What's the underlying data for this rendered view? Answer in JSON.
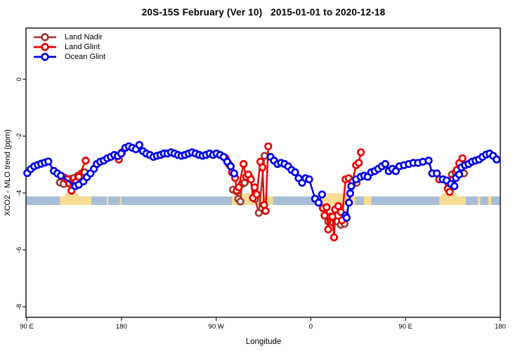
{
  "title": "20S-15S February (Ver 10)   2015-01-01 to 2020-12-18",
  "chart_data": {
    "type": "line",
    "title": "20S-15S February (Ver 10)   2015-01-01 to 2020-12-18",
    "xlabel": "Longitude",
    "ylabel": "XCO2 - MLO trend (ppm)",
    "x_range_deg": [
      -0.7,
      450
    ],
    "y_range": [
      -8.37,
      1.8
    ],
    "grid": false,
    "legend_position": "top-left",
    "x_ticks": [
      {
        "deg": 0,
        "label": "90 E"
      },
      {
        "deg": 90,
        "label": "180"
      },
      {
        "deg": 180,
        "label": "90 W"
      },
      {
        "deg": 270,
        "label": "0"
      },
      {
        "deg": 360,
        "label": "90 E"
      },
      {
        "deg": 450,
        "label": "180"
      }
    ],
    "y_ticks": [
      {
        "v": 0,
        "label": "0"
      },
      {
        "v": -2,
        "label": "-2"
      },
      {
        "v": -4,
        "label": "-4"
      },
      {
        "v": -6,
        "label": "-6"
      },
      {
        "v": -8,
        "label": "-8"
      }
    ],
    "band": {
      "name": "reference-band",
      "v_top": -4.12,
      "v_bottom": -4.42,
      "color": "#a9bdd8"
    },
    "patch_color": "#f8dc94",
    "patches": [
      {
        "d0": 31.5,
        "d1": 61.5,
        "b0": 36,
        "b1": 50
      },
      {
        "d0": 76,
        "d1": 77.5
      },
      {
        "d0": 88.5,
        "d1": 90
      },
      {
        "d0": 195,
        "d1": 234,
        "b0": 199,
        "b1": 216
      },
      {
        "d0": 278,
        "d1": 312,
        "b0": 279,
        "b1": 305
      },
      {
        "d0": 320.5,
        "d1": 327.5
      },
      {
        "d0": 392,
        "d1": 417,
        "b0": 394,
        "b1": 409
      },
      {
        "d0": 428.5,
        "d1": 431
      },
      {
        "d0": 438.5,
        "d1": 441.5
      }
    ],
    "series": [
      {
        "name": "Land Nadir",
        "color": "#a03b35",
        "segments": [
          [
            [
              31.5,
              -3.63
            ],
            [
              35,
              -3.68
            ],
            [
              38.5,
              -3.55
            ],
            [
              42,
              -3.5
            ],
            [
              45,
              -3.47
            ],
            [
              48.5,
              -3.39
            ],
            [
              52,
              -3.31
            ],
            [
              55,
              -3.27
            ]
          ],
          [
            [
              196,
              -3.88
            ],
            [
              199.5,
              -3.94
            ],
            [
              201,
              -4.21
            ],
            [
              203,
              -4.3
            ],
            [
              204.5,
              -3.68
            ],
            [
              207,
              -3.64
            ],
            [
              209.5,
              -3.43
            ],
            [
              211.5,
              -3.43
            ],
            [
              217,
              -4.21
            ],
            [
              220.5,
              -4.7
            ],
            [
              226,
              -2.69
            ]
          ],
          [
            [
              281.5,
              -4.54
            ],
            [
              286.5,
              -5.0
            ],
            [
              291,
              -5.04
            ],
            [
              295,
              -5.0
            ],
            [
              298.5,
              -5.12
            ],
            [
              302,
              -5.08
            ],
            [
              310.5,
              -3.6
            ],
            [
              313.5,
              -3.64
            ]
          ],
          [
            [
              400,
              -3.6
            ],
            [
              404,
              -3.35
            ],
            [
              407.5,
              -3.27
            ],
            [
              412,
              -3.27
            ],
            [
              415.5,
              -3.31
            ]
          ]
        ]
      },
      {
        "name": "Land Glint",
        "color": "#ee0000",
        "segments": [
          [
            [
              36,
              -3.46
            ],
            [
              38.5,
              -3.52
            ],
            [
              40.5,
              -3.67
            ],
            [
              42.5,
              -3.92
            ],
            [
              44.5,
              -3.72
            ],
            [
              47,
              -3.6
            ],
            [
              49.5,
              -3.43
            ],
            [
              56,
              -2.86
            ]
          ],
          [
            [
              87.5,
              -2.82
            ],
            [
              90.5,
              -2.57
            ]
          ],
          [
            [
              189,
              -2.78
            ],
            [
              192,
              -2.98
            ],
            [
              195,
              -3.27
            ],
            [
              198,
              -3.47
            ],
            [
              199.5,
              -3.92
            ],
            [
              201.5,
              -3.8
            ],
            [
              206,
              -2.98
            ],
            [
              208.5,
              -3.43
            ],
            [
              210.5,
              -3.35
            ],
            [
              213,
              -3.52
            ],
            [
              215,
              -4.17
            ],
            [
              216.5,
              -3.8
            ],
            [
              218.5,
              -4.05
            ],
            [
              222,
              -2.9
            ],
            [
              224,
              -3.1
            ],
            [
              225.5,
              -4.42
            ],
            [
              227,
              -4.63
            ],
            [
              229.5,
              -2.36
            ]
          ],
          [
            [
              281.5,
              -4.53
            ],
            [
              283,
              -4.79
            ],
            [
              285,
              -4.5
            ],
            [
              286.5,
              -5.28
            ],
            [
              288.5,
              -4.83
            ],
            [
              290.5,
              -4.83
            ],
            [
              292,
              -5.56
            ],
            [
              293,
              -4.58
            ],
            [
              296,
              -4.46
            ],
            [
              298.5,
              -4.67
            ],
            [
              299.5,
              -4.96
            ],
            [
              302.9,
              -3.52
            ],
            [
              306,
              -3.48
            ],
            [
              309.5,
              -3.6
            ],
            [
              313,
              -3.02
            ],
            [
              315.5,
              -2.94
            ],
            [
              317.5,
              -2.57
            ]
          ],
          [
            [
              392,
              -3.52
            ],
            [
              396,
              -3.52
            ],
            [
              400,
              -3.85
            ],
            [
              401.9,
              -3.96
            ],
            [
              405,
              -3.52
            ],
            [
              408.6,
              -3.19
            ],
            [
              411,
              -2.95
            ],
            [
              414,
              -2.78
            ]
          ]
        ]
      },
      {
        "name": "Ocean Glint",
        "color": "#0000ee",
        "segments": [
          [
            [
              0.5,
              -3.3
            ],
            [
              3.8,
              -3.16
            ],
            [
              7.1,
              -3.06
            ],
            [
              10.5,
              -3.01
            ],
            [
              13.8,
              -2.97
            ],
            [
              17.2,
              -2.93
            ],
            [
              20.5,
              -2.89
            ],
            [
              25.8,
              -3.22
            ],
            [
              29.1,
              -3.31
            ],
            [
              32.4,
              -3.39
            ],
            [
              46.1,
              -3.76
            ],
            [
              49.4,
              -3.71
            ],
            [
              53.9,
              -3.59
            ],
            [
              57.2,
              -3.44
            ],
            [
              60.5,
              -3.31
            ],
            [
              63.9,
              -3.15
            ],
            [
              66.6,
              -2.98
            ],
            [
              69.9,
              -2.9
            ],
            [
              73.2,
              -2.86
            ],
            [
              76.5,
              -2.78
            ],
            [
              79.9,
              -2.73
            ],
            [
              83.2,
              -2.66
            ],
            [
              86.5,
              -2.7
            ],
            [
              89.8,
              -2.61
            ],
            [
              93.7,
              -2.41
            ],
            [
              97.0,
              -2.36
            ],
            [
              100.3,
              -2.41
            ],
            [
              103.7,
              -2.46
            ],
            [
              107.0,
              -2.31
            ],
            [
              110.4,
              -2.53
            ],
            [
              113.7,
              -2.61
            ],
            [
              117.0,
              -2.66
            ],
            [
              120.4,
              -2.73
            ],
            [
              123.7,
              -2.69
            ],
            [
              127.1,
              -2.66
            ],
            [
              130.4,
              -2.61
            ],
            [
              133.7,
              -2.61
            ],
            [
              137.1,
              -2.57
            ],
            [
              140.4,
              -2.61
            ],
            [
              143.7,
              -2.66
            ],
            [
              147.1,
              -2.69
            ],
            [
              150.4,
              -2.66
            ],
            [
              153.8,
              -2.61
            ],
            [
              157.1,
              -2.57
            ],
            [
              160.4,
              -2.61
            ],
            [
              163.8,
              -2.66
            ],
            [
              167.1,
              -2.69
            ],
            [
              170.4,
              -2.66
            ],
            [
              173.8,
              -2.61
            ],
            [
              177.1,
              -2.66
            ],
            [
              180.4,
              -2.61
            ],
            [
              183.8,
              -2.66
            ],
            [
              187.1,
              -2.73
            ],
            [
              190.5,
              -2.9
            ],
            [
              193.8,
              -3.06
            ],
            [
              197.1,
              -3.31
            ]
          ],
          [
            [
              231.7,
              -2.73
            ],
            [
              235.0,
              -2.86
            ],
            [
              238.4,
              -2.98
            ],
            [
              241.7,
              -2.94
            ],
            [
              245.0,
              -2.98
            ],
            [
              248.4,
              -3.06
            ],
            [
              251.7,
              -3.19
            ],
            [
              255.0,
              -3.27
            ],
            [
              258.4,
              -3.48
            ],
            [
              261.7,
              -3.64
            ],
            [
              265.0,
              -3.48
            ],
            [
              268.4,
              -3.52
            ],
            [
              274.0,
              -4.2
            ],
            [
              277.3,
              -4.34
            ],
            [
              280.6,
              -4.05
            ]
          ],
          [
            [
              302.9,
              -4.79
            ],
            [
              304.0,
              -4.87
            ],
            [
              306.2,
              -4.34
            ],
            [
              307.3,
              -4.01
            ],
            [
              308.4,
              -3.76
            ],
            [
              312.9,
              -3.52
            ],
            [
              317.3,
              -3.43
            ],
            [
              320.7,
              -3.39
            ],
            [
              324.0,
              -3.43
            ],
            [
              327.3,
              -3.27
            ],
            [
              330.7,
              -3.23
            ],
            [
              334.0,
              -3.15
            ],
            [
              337.4,
              -3.06
            ],
            [
              340.7,
              -2.98
            ],
            [
              344.0,
              -3.23
            ],
            [
              347.4,
              -3.15
            ],
            [
              350.7,
              -3.23
            ],
            [
              354.1,
              -3.06
            ],
            [
              358.5,
              -3.02
            ],
            [
              363.0,
              -2.98
            ],
            [
              367.4,
              -2.94
            ],
            [
              371.9,
              -2.94
            ],
            [
              376.4,
              -2.9
            ],
            [
              381.9,
              -2.86
            ],
            [
              385.3,
              -3.31
            ],
            [
              389.7,
              -3.31
            ],
            [
              395.3,
              -3.52
            ],
            [
              399.0,
              -3.56
            ],
            [
              403.1,
              -3.68
            ],
            [
              406.4,
              -3.76
            ],
            [
              407.9,
              -3.47
            ],
            [
              410.9,
              -3.35
            ],
            [
              413.1,
              -3.1
            ],
            [
              416.4,
              -3.02
            ],
            [
              419.8,
              -2.98
            ],
            [
              423.1,
              -2.9
            ],
            [
              426.4,
              -2.86
            ],
            [
              429.8,
              -2.82
            ],
            [
              433.1,
              -2.73
            ],
            [
              436.5,
              -2.65
            ],
            [
              439.8,
              -2.61
            ],
            [
              443.2,
              -2.69
            ],
            [
              446.5,
              -2.82
            ]
          ]
        ]
      }
    ]
  }
}
